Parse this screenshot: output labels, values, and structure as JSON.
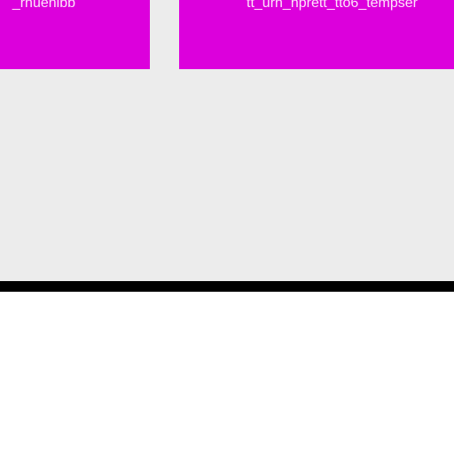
{
  "tiles": [
    {
      "label": "_rnuenibb"
    },
    {
      "label": "tt_urn_nprett_tto6_tempser"
    }
  ],
  "colors": {
    "tile_background": "#dc00dc",
    "tile_text": "#ffe4fb",
    "panel_background": "#ececec",
    "bar": "#000000",
    "page_background": "#ffffff"
  }
}
